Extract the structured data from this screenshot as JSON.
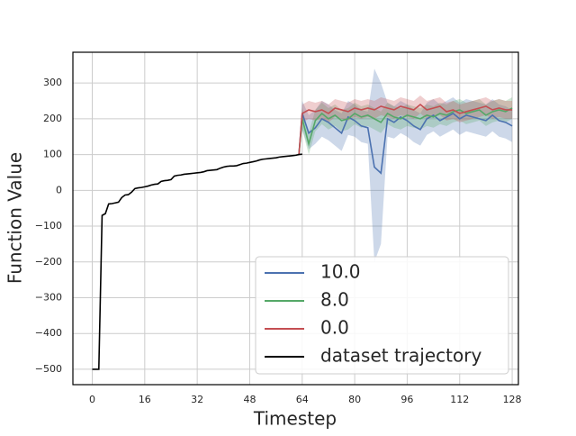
{
  "chart_data": {
    "type": "line",
    "xlabel": "Timestep",
    "ylabel": "Function Value",
    "xlim": [
      -5.9,
      129.9
    ],
    "ylim": [
      -543,
      386
    ],
    "xticks": [
      0,
      16,
      32,
      48,
      64,
      80,
      96,
      112,
      128
    ],
    "yticks": [
      {
        "value": -500,
        "label": "−500"
      },
      {
        "value": -400,
        "label": "−400"
      },
      {
        "value": -300,
        "label": "−300"
      },
      {
        "value": -200,
        "label": "−200"
      },
      {
        "value": -100,
        "label": "−100"
      },
      0,
      100,
      200,
      300
    ],
    "grid": true,
    "legend": "lower right",
    "series": [
      {
        "name": "10.0",
        "color": "#4c72b0",
        "x": [
          63,
          64,
          66,
          68,
          70,
          72,
          74,
          76,
          78,
          80,
          82,
          84,
          86,
          88,
          90,
          92,
          94,
          96,
          98,
          100,
          102,
          104,
          106,
          108,
          110,
          112,
          114,
          116,
          118,
          120,
          122,
          124,
          126,
          128
        ],
        "values": [
          100,
          215,
          160,
          175,
          200,
          190,
          175,
          160,
          205,
          195,
          180,
          175,
          65,
          48,
          200,
          190,
          205,
          195,
          180,
          170,
          200,
          210,
          195,
          205,
          215,
          200,
          210,
          205,
          200,
          195,
          210,
          195,
          190,
          180
        ],
        "lower": [
          100,
          170,
          115,
          130,
          150,
          140,
          125,
          110,
          155,
          150,
          135,
          130,
          -200,
          -150,
          150,
          145,
          160,
          150,
          135,
          125,
          155,
          165,
          150,
          160,
          170,
          155,
          165,
          160,
          155,
          150,
          165,
          150,
          145,
          135
        ],
        "upper": [
          100,
          250,
          210,
          225,
          250,
          240,
          225,
          215,
          250,
          240,
          225,
          220,
          340,
          300,
          245,
          235,
          250,
          240,
          225,
          215,
          245,
          255,
          240,
          250,
          260,
          245,
          255,
          250,
          245,
          240,
          255,
          240,
          235,
          225
        ]
      },
      {
        "name": "8.0",
        "color": "#55a868",
        "x": [
          63,
          64,
          66,
          68,
          70,
          72,
          74,
          76,
          78,
          80,
          82,
          84,
          86,
          88,
          90,
          92,
          94,
          96,
          98,
          100,
          102,
          104,
          106,
          108,
          110,
          112,
          114,
          116,
          118,
          120,
          122,
          124,
          126,
          128
        ],
        "values": [
          100,
          200,
          130,
          195,
          215,
          200,
          210,
          195,
          200,
          215,
          205,
          210,
          200,
          190,
          215,
          205,
          200,
          210,
          205,
          200,
          210,
          205,
          215,
          210,
          220,
          225,
          215,
          220,
          225,
          210,
          220,
          225,
          220,
          230
        ],
        "lower": [
          100,
          170,
          100,
          165,
          185,
          170,
          180,
          165,
          170,
          185,
          175,
          180,
          170,
          160,
          185,
          175,
          170,
          180,
          175,
          170,
          180,
          175,
          185,
          180,
          190,
          195,
          185,
          190,
          195,
          180,
          190,
          195,
          190,
          200
        ],
        "upper": [
          100,
          230,
          160,
          225,
          245,
          230,
          240,
          225,
          230,
          245,
          235,
          240,
          230,
          220,
          245,
          235,
          230,
          240,
          235,
          230,
          240,
          235,
          245,
          240,
          250,
          255,
          245,
          250,
          255,
          240,
          250,
          255,
          250,
          260
        ]
      },
      {
        "name": "0.0",
        "color": "#c44e52",
        "x": [
          63,
          64,
          66,
          68,
          70,
          72,
          74,
          76,
          78,
          80,
          82,
          84,
          86,
          88,
          90,
          92,
          94,
          96,
          98,
          100,
          102,
          104,
          106,
          108,
          110,
          112,
          114,
          116,
          118,
          120,
          122,
          124,
          126,
          128
        ],
        "values": [
          100,
          215,
          225,
          220,
          225,
          215,
          230,
          225,
          220,
          230,
          225,
          230,
          225,
          235,
          230,
          225,
          235,
          230,
          225,
          240,
          225,
          230,
          235,
          220,
          225,
          215,
          220,
          225,
          230,
          235,
          225,
          230,
          225,
          225
        ],
        "lower": [
          100,
          190,
          200,
          195,
          200,
          190,
          205,
          200,
          195,
          205,
          200,
          205,
          200,
          210,
          205,
          200,
          210,
          205,
          200,
          215,
          200,
          205,
          210,
          195,
          200,
          190,
          195,
          200,
          205,
          210,
          200,
          205,
          200,
          200
        ],
        "upper": [
          100,
          240,
          250,
          245,
          250,
          240,
          255,
          250,
          245,
          255,
          250,
          255,
          250,
          260,
          255,
          250,
          260,
          255,
          250,
          265,
          250,
          255,
          260,
          245,
          250,
          240,
          245,
          250,
          255,
          260,
          250,
          255,
          250,
          250
        ]
      },
      {
        "name": "dataset trajectory",
        "color": "#000000",
        "x": [
          0,
          1,
          2,
          3,
          4,
          5,
          6,
          7,
          8,
          9,
          10,
          11,
          12,
          13,
          14,
          15,
          16,
          17,
          18,
          19,
          20,
          21,
          22,
          23,
          24,
          25,
          26,
          27,
          28,
          29,
          30,
          31,
          32,
          33,
          34,
          35,
          36,
          37,
          38,
          39,
          40,
          41,
          42,
          43,
          44,
          45,
          46,
          47,
          48,
          49,
          50,
          51,
          52,
          53,
          54,
          55,
          56,
          57,
          58,
          59,
          60,
          61,
          62,
          63,
          64
        ],
        "values": [
          -500,
          -500,
          -500,
          -70,
          -65,
          -38,
          -37,
          -35,
          -33,
          -20,
          -13,
          -12,
          -5,
          5,
          7,
          8,
          10,
          12,
          15,
          17,
          18,
          25,
          27,
          28,
          30,
          40,
          42,
          43,
          45,
          46,
          47,
          48,
          49,
          50,
          52,
          55,
          56,
          57,
          58,
          62,
          65,
          67,
          68,
          68,
          69,
          72,
          75,
          76,
          78,
          80,
          82,
          85,
          87,
          88,
          89,
          90,
          91,
          93,
          94,
          95,
          96,
          97,
          98,
          100,
          101
        ]
      }
    ]
  }
}
